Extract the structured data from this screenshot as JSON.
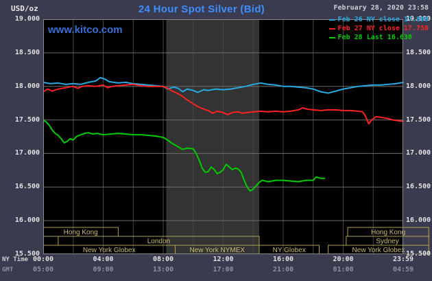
{
  "header": {
    "units_label": "USD/oz",
    "title": "24 Hour Spot Silver (Bid)",
    "datetime": "February 28, 2020 23:58",
    "watermark": "www.kitco.com"
  },
  "legend": {
    "items": [
      {
        "label": "Feb 26 NY close 17.890",
        "color": "#27aae1"
      },
      {
        "label": "Feb 27 NY close 17.750",
        "color": "#ff2222"
      },
      {
        "label": "Feb 28 Last 16.630",
        "color": "#00cc00"
      }
    ]
  },
  "axes": {
    "y_ticks": [
      {
        "value": 19.0,
        "label": "19.000"
      },
      {
        "value": 18.5,
        "label": "18.500"
      },
      {
        "value": 18.0,
        "label": "18.000"
      },
      {
        "value": 17.5,
        "label": "17.500"
      },
      {
        "value": 17.0,
        "label": "17.000"
      },
      {
        "value": 16.5,
        "label": "16.500"
      },
      {
        "value": 16.0,
        "label": "16.000"
      },
      {
        "value": 15.5,
        "label": "15.500"
      }
    ],
    "x_row_ny": {
      "title": "NY Time",
      "ticks": [
        {
          "h": 0,
          "label": "00:00"
        },
        {
          "h": 4,
          "label": "04:00"
        },
        {
          "h": 8,
          "label": "08:00"
        },
        {
          "h": 12,
          "label": "12:00"
        },
        {
          "h": 16,
          "label": "16:00"
        },
        {
          "h": 20,
          "label": "20:00"
        },
        {
          "h": 24,
          "label": "23:59"
        }
      ]
    },
    "x_row_gmt": {
      "title": "GMT",
      "ticks": [
        {
          "h": 0,
          "label": "05:00"
        },
        {
          "h": 4,
          "label": "09:00"
        },
        {
          "h": 8,
          "label": "13:00"
        },
        {
          "h": 12,
          "label": "17:00"
        },
        {
          "h": 16,
          "label": "21:00"
        },
        {
          "h": 20,
          "label": "01:00"
        },
        {
          "h": 24,
          "label": "04:59"
        }
      ]
    }
  },
  "sessions": {
    "border_color": "#b5a14f",
    "text_color": "#cdbc72",
    "rows": [
      {
        "items": [
          {
            "label": "Hong Kong",
            "start": 0,
            "end": 5.0
          },
          {
            "label": "Hong Kong",
            "start": 20.3,
            "end": 25.7
          }
        ]
      },
      {
        "items": [
          {
            "label": "London",
            "start": 1.0,
            "end": 14.4
          },
          {
            "label": "Sydney",
            "start": 20.2,
            "end": 25.7
          }
        ]
      },
      {
        "items": [
          {
            "label": "New York Globex",
            "start": 0,
            "end": 8.8
          },
          {
            "label": "New York NYMEX",
            "start": 8.8,
            "end": 14.4
          },
          {
            "label": "NY Globex",
            "start": 14.4,
            "end": 18.4
          },
          {
            "label": "New York Globex",
            "start": 19.0,
            "end": 25.7
          }
        ]
      }
    ]
  },
  "chart_data": {
    "type": "line",
    "title": "24 Hour Spot Silver (Bid)",
    "xlabel": "NY Time (hours)",
    "ylabel": "USD/oz",
    "xlim": [
      0,
      24
    ],
    "ylim": [
      15.5,
      19.0
    ],
    "bg": "#000000",
    "border_color": "#8a8a8a",
    "grid": {
      "x_step_hours": 2,
      "y_step": 0.5,
      "h_color": "#6e6e6e",
      "v_color": "#464646"
    },
    "nymex_band": {
      "start_hour": 8.2,
      "end_hour": 14.4,
      "color": "#333333"
    },
    "series": [
      {
        "name": "Feb 26",
        "color": "#27aae1",
        "points": [
          [
            0,
            18.06
          ],
          [
            0.5,
            18.04
          ],
          [
            1,
            18.05
          ],
          [
            1.5,
            18.03
          ],
          [
            2,
            18.04
          ],
          [
            2.5,
            18.03
          ],
          [
            3,
            18.06
          ],
          [
            3.5,
            18.08
          ],
          [
            3.8,
            18.13
          ],
          [
            4.1,
            18.11
          ],
          [
            4.4,
            18.07
          ],
          [
            5,
            18.05
          ],
          [
            5.5,
            18.06
          ],
          [
            6,
            18.04
          ],
          [
            6.5,
            18.03
          ],
          [
            7,
            18.02
          ],
          [
            7.5,
            18.01
          ],
          [
            8,
            18.0
          ],
          [
            8.3,
            17.96
          ],
          [
            8.7,
            17.99
          ],
          [
            9,
            17.97
          ],
          [
            9.3,
            17.92
          ],
          [
            9.6,
            17.96
          ],
          [
            10,
            17.94
          ],
          [
            10.3,
            17.91
          ],
          [
            10.7,
            17.95
          ],
          [
            11,
            17.94
          ],
          [
            11.5,
            17.96
          ],
          [
            12,
            17.95
          ],
          [
            12.5,
            17.96
          ],
          [
            13,
            17.98
          ],
          [
            13.5,
            18.0
          ],
          [
            14,
            18.03
          ],
          [
            14.5,
            18.05
          ],
          [
            15,
            18.03
          ],
          [
            15.5,
            18.02
          ],
          [
            16,
            18.0
          ],
          [
            16.5,
            18.0
          ],
          [
            17,
            17.99
          ],
          [
            17.5,
            17.98
          ],
          [
            18,
            17.96
          ],
          [
            18.5,
            17.92
          ],
          [
            19,
            17.9
          ],
          [
            19.5,
            17.93
          ],
          [
            20,
            17.96
          ],
          [
            20.5,
            17.98
          ],
          [
            21,
            18.0
          ],
          [
            21.5,
            18.01
          ],
          [
            22,
            18.02
          ],
          [
            22.5,
            18.02
          ],
          [
            23,
            18.03
          ],
          [
            23.5,
            18.04
          ],
          [
            24,
            18.06
          ]
        ]
      },
      {
        "name": "Feb 27",
        "color": "#ff2222",
        "points": [
          [
            0,
            17.92
          ],
          [
            0.3,
            17.96
          ],
          [
            0.6,
            17.93
          ],
          [
            1,
            17.96
          ],
          [
            1.5,
            17.98
          ],
          [
            2,
            18.0
          ],
          [
            2.3,
            17.97
          ],
          [
            2.6,
            18.0
          ],
          [
            3,
            18.01
          ],
          [
            3.5,
            18.0
          ],
          [
            4,
            18.02
          ],
          [
            4.3,
            17.98
          ],
          [
            4.6,
            18.0
          ],
          [
            5,
            18.01
          ],
          [
            5.5,
            18.02
          ],
          [
            6,
            18.03
          ],
          [
            6.5,
            18.01
          ],
          [
            7,
            18.0
          ],
          [
            7.5,
            18.0
          ],
          [
            8,
            18.0
          ],
          [
            8.3,
            17.97
          ],
          [
            8.6,
            17.93
          ],
          [
            9,
            17.89
          ],
          [
            9.3,
            17.85
          ],
          [
            9.6,
            17.8
          ],
          [
            10,
            17.74
          ],
          [
            10.3,
            17.7
          ],
          [
            10.6,
            17.67
          ],
          [
            11,
            17.64
          ],
          [
            11.3,
            17.6
          ],
          [
            11.6,
            17.63
          ],
          [
            12,
            17.61
          ],
          [
            12.3,
            17.58
          ],
          [
            12.6,
            17.61
          ],
          [
            13,
            17.62
          ],
          [
            13.3,
            17.6
          ],
          [
            13.6,
            17.61
          ],
          [
            14,
            17.62
          ],
          [
            14.5,
            17.63
          ],
          [
            15,
            17.62
          ],
          [
            15.5,
            17.63
          ],
          [
            16,
            17.62
          ],
          [
            16.5,
            17.63
          ],
          [
            17,
            17.65
          ],
          [
            17.3,
            17.68
          ],
          [
            17.6,
            17.66
          ],
          [
            18,
            17.65
          ],
          [
            18.5,
            17.64
          ],
          [
            19,
            17.65
          ],
          [
            19.5,
            17.65
          ],
          [
            20,
            17.64
          ],
          [
            20.5,
            17.64
          ],
          [
            21,
            17.63
          ],
          [
            21.3,
            17.62
          ],
          [
            21.5,
            17.55
          ],
          [
            21.7,
            17.44
          ],
          [
            21.9,
            17.5
          ],
          [
            22.2,
            17.55
          ],
          [
            22.5,
            17.54
          ],
          [
            23,
            17.52
          ],
          [
            23.3,
            17.5
          ],
          [
            23.6,
            17.49
          ],
          [
            24,
            17.48
          ]
        ]
      },
      {
        "name": "Feb 28",
        "color": "#00cc00",
        "points": [
          [
            0,
            17.5
          ],
          [
            0.2,
            17.47
          ],
          [
            0.4,
            17.42
          ],
          [
            0.6,
            17.35
          ],
          [
            0.8,
            17.3
          ],
          [
            1,
            17.27
          ],
          [
            1.2,
            17.22
          ],
          [
            1.4,
            17.16
          ],
          [
            1.6,
            17.18
          ],
          [
            1.8,
            17.22
          ],
          [
            2,
            17.2
          ],
          [
            2.2,
            17.25
          ],
          [
            2.5,
            17.28
          ],
          [
            2.8,
            17.3
          ],
          [
            3,
            17.31
          ],
          [
            3.3,
            17.29
          ],
          [
            3.6,
            17.3
          ],
          [
            4,
            17.28
          ],
          [
            4.5,
            17.29
          ],
          [
            5,
            17.3
          ],
          [
            5.5,
            17.29
          ],
          [
            6,
            17.28
          ],
          [
            6.5,
            17.28
          ],
          [
            7,
            17.27
          ],
          [
            7.5,
            17.26
          ],
          [
            8,
            17.24
          ],
          [
            8.3,
            17.2
          ],
          [
            8.6,
            17.15
          ],
          [
            9,
            17.1
          ],
          [
            9.3,
            17.06
          ],
          [
            9.6,
            17.08
          ],
          [
            10,
            17.07
          ],
          [
            10.2,
            17.0
          ],
          [
            10.4,
            16.9
          ],
          [
            10.6,
            16.78
          ],
          [
            10.8,
            16.72
          ],
          [
            11,
            16.73
          ],
          [
            11.2,
            16.8
          ],
          [
            11.4,
            16.76
          ],
          [
            11.6,
            16.7
          ],
          [
            11.8,
            16.72
          ],
          [
            12,
            16.76
          ],
          [
            12.2,
            16.84
          ],
          [
            12.4,
            16.8
          ],
          [
            12.6,
            16.76
          ],
          [
            12.8,
            16.78
          ],
          [
            13,
            16.77
          ],
          [
            13.2,
            16.72
          ],
          [
            13.4,
            16.6
          ],
          [
            13.6,
            16.5
          ],
          [
            13.8,
            16.44
          ],
          [
            14,
            16.47
          ],
          [
            14.2,
            16.52
          ],
          [
            14.4,
            16.57
          ],
          [
            14.6,
            16.6
          ],
          [
            15,
            16.58
          ],
          [
            15.5,
            16.6
          ],
          [
            16,
            16.6
          ],
          [
            16.5,
            16.59
          ],
          [
            17,
            16.58
          ],
          [
            17.5,
            16.6
          ],
          [
            18,
            16.6
          ],
          [
            18.2,
            16.65
          ],
          [
            18.5,
            16.63
          ],
          [
            18.75,
            16.63
          ]
        ]
      }
    ]
  }
}
